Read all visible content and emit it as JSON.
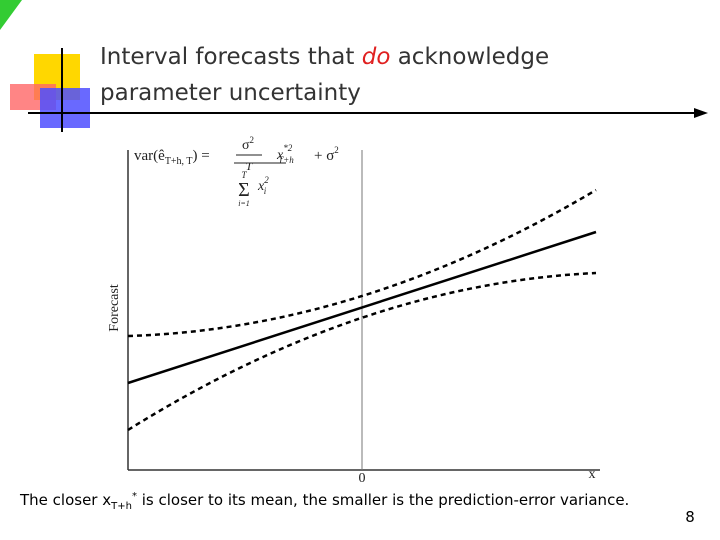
{
  "title": {
    "before": "Interval forecasts that ",
    "emphasis": "do",
    "after": " acknowledge",
    "line2": "parameter uncertainty"
  },
  "figure": {
    "y_label": "Forecast",
    "x_label": "x",
    "origin_label": "0",
    "formula": {
      "lhs_open": "var(ê",
      "lhs_sub": "T+h, T",
      "lhs_close": ") =",
      "sigma": "σ",
      "square": "2",
      "T": "T",
      "x": "x",
      "star_square": "*2",
      "T_plus_h": "T+h",
      "plus_sigma": "+ σ",
      "sum": "Σ",
      "i_eq_1": "i=1",
      "i": "i"
    }
  },
  "caption": {
    "before": "The closer x",
    "subscript": "T+h",
    "superscript": "*",
    "after": " is closer to its mean, the smaller is the prediction-error variance."
  },
  "page_number": "8"
}
